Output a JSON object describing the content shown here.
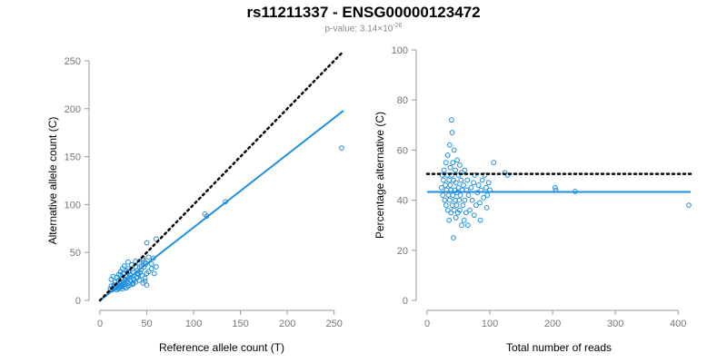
{
  "header": {
    "title": "rs11211337 - ENSG00000123472",
    "pvalue_prefix": "p-value: 3.14×10",
    "pvalue_exponent": "-26"
  },
  "colors": {
    "points": "#1f8fe0",
    "fit_line": "#1f8fe0",
    "reference_line": "#000000"
  },
  "chart_data": [
    {
      "type": "scatter",
      "xlabel": "Reference allele count (T)",
      "ylabel": "Alternative allele count (C)",
      "xlim": [
        0,
        260
      ],
      "ylim": [
        0,
        250
      ],
      "xticks": [
        0,
        50,
        100,
        150,
        200,
        250
      ],
      "yticks": [
        0,
        50,
        100,
        150,
        200,
        250
      ],
      "reference_line": {
        "style": "dotted",
        "x": [
          0,
          260
        ],
        "y": [
          0,
          260
        ]
      },
      "fit_line": {
        "style": "solid",
        "x": [
          0,
          260
        ],
        "y": [
          0,
          198
        ]
      },
      "points": [
        [
          11,
          12
        ],
        [
          12,
          15
        ],
        [
          13,
          11
        ],
        [
          14,
          13
        ],
        [
          15,
          16
        ],
        [
          15,
          12
        ],
        [
          16,
          14
        ],
        [
          17,
          13
        ],
        [
          18,
          15
        ],
        [
          18,
          11
        ],
        [
          19,
          14
        ],
        [
          20,
          16
        ],
        [
          20,
          12
        ],
        [
          21,
          13
        ],
        [
          22,
          15
        ],
        [
          22,
          18
        ],
        [
          23,
          14
        ],
        [
          24,
          12
        ],
        [
          25,
          16
        ],
        [
          25,
          19
        ],
        [
          26,
          14
        ],
        [
          27,
          17
        ],
        [
          28,
          13
        ],
        [
          28,
          21
        ],
        [
          30,
          15
        ],
        [
          31,
          18
        ],
        [
          32,
          16
        ],
        [
          33,
          20
        ],
        [
          35,
          17
        ],
        [
          36,
          22
        ],
        [
          38,
          19
        ],
        [
          40,
          24
        ],
        [
          42,
          21
        ],
        [
          45,
          26
        ],
        [
          48,
          23
        ],
        [
          50,
          28
        ],
        [
          52,
          30
        ],
        [
          55,
          33
        ],
        [
          58,
          28
        ],
        [
          60,
          35
        ],
        [
          12,
          22
        ],
        [
          14,
          25
        ],
        [
          16,
          19
        ],
        [
          18,
          24
        ],
        [
          20,
          21
        ],
        [
          22,
          26
        ],
        [
          24,
          23
        ],
        [
          26,
          28
        ],
        [
          28,
          25
        ],
        [
          30,
          30
        ],
        [
          32,
          27
        ],
        [
          34,
          33
        ],
        [
          36,
          29
        ],
        [
          38,
          35
        ],
        [
          40,
          31
        ],
        [
          42,
          38
        ],
        [
          44,
          36
        ],
        [
          46,
          42
        ],
        [
          48,
          40
        ],
        [
          52,
          45
        ],
        [
          30,
          33
        ],
        [
          34,
          37
        ],
        [
          38,
          41
        ],
        [
          40,
          28
        ],
        [
          44,
          32
        ],
        [
          46,
          18
        ],
        [
          48,
          20
        ],
        [
          50,
          16
        ],
        [
          35,
          18
        ],
        [
          37,
          21
        ],
        [
          25,
          28
        ],
        [
          27,
          22
        ],
        [
          29,
          19
        ],
        [
          31,
          24
        ],
        [
          33,
          26
        ],
        [
          39,
          24
        ],
        [
          41,
          27
        ],
        [
          43,
          29
        ],
        [
          47,
          35
        ],
        [
          49,
          38
        ],
        [
          20,
          27
        ],
        [
          22,
          30
        ],
        [
          24,
          33
        ],
        [
          26,
          36
        ],
        [
          28,
          31
        ],
        [
          30,
          40
        ],
        [
          46,
          44
        ],
        [
          50,
          60
        ],
        [
          55,
          38
        ],
        [
          57,
          44
        ],
        [
          60,
          64
        ],
        [
          112,
          90
        ],
        [
          114,
          88
        ],
        [
          134,
          103
        ],
        [
          258,
          159
        ]
      ]
    },
    {
      "type": "scatter",
      "xlabel": "Total number of reads",
      "ylabel": "Percentage alternative (C)",
      "xlim": [
        0,
        420
      ],
      "ylim": [
        0,
        100
      ],
      "xticks": [
        0,
        100,
        200,
        300,
        400
      ],
      "yticks": [
        0,
        20,
        40,
        60,
        80,
        100
      ],
      "reference_line": {
        "style": "dotted",
        "x": [
          0,
          420
        ],
        "y": [
          50.5,
          50.5
        ]
      },
      "fit_line": {
        "style": "solid",
        "x": [
          0,
          420
        ],
        "y": [
          43.3,
          43.3
        ]
      },
      "points": [
        [
          23,
          45
        ],
        [
          24,
          50
        ],
        [
          25,
          42
        ],
        [
          26,
          48
        ],
        [
          27,
          52
        ],
        [
          28,
          40
        ],
        [
          29,
          46
        ],
        [
          30,
          38
        ],
        [
          30,
          55
        ],
        [
          31,
          44
        ],
        [
          32,
          50
        ],
        [
          33,
          36
        ],
        [
          33,
          58
        ],
        [
          34,
          42
        ],
        [
          35,
          48
        ],
        [
          35,
          32
        ],
        [
          36,
          62
        ],
        [
          36,
          40
        ],
        [
          37,
          46
        ],
        [
          37,
          53
        ],
        [
          38,
          35
        ],
        [
          38,
          44
        ],
        [
          39,
          72
        ],
        [
          39,
          50
        ],
        [
          40,
          38
        ],
        [
          40,
          67
        ],
        [
          41,
          42
        ],
        [
          41,
          55
        ],
        [
          42,
          25
        ],
        [
          42,
          48
        ],
        [
          43,
          36
        ],
        [
          43,
          60
        ],
        [
          44,
          44
        ],
        [
          45,
          40
        ],
        [
          45,
          52
        ],
        [
          46,
          33
        ],
        [
          46,
          47
        ],
        [
          47,
          38
        ],
        [
          48,
          56
        ],
        [
          48,
          43
        ],
        [
          49,
          35
        ],
        [
          50,
          45
        ],
        [
          50,
          50
        ],
        [
          51,
          40
        ],
        [
          52,
          54
        ],
        [
          52,
          36
        ],
        [
          53,
          42
        ],
        [
          54,
          48
        ],
        [
          55,
          30
        ],
        [
          55,
          51
        ],
        [
          56,
          44
        ],
        [
          57,
          38
        ],
        [
          58,
          46
        ],
        [
          59,
          32
        ],
        [
          60,
          40
        ],
        [
          60,
          52
        ],
        [
          62,
          35
        ],
        [
          63,
          44
        ],
        [
          64,
          48
        ],
        [
          65,
          30
        ],
        [
          66,
          42
        ],
        [
          68,
          36
        ],
        [
          70,
          45
        ],
        [
          72,
          40
        ],
        [
          74,
          47
        ],
        [
          75,
          34
        ],
        [
          76,
          50
        ],
        [
          78,
          38
        ],
        [
          80,
          43
        ],
        [
          82,
          46
        ],
        [
          84,
          39
        ],
        [
          85,
          32
        ],
        [
          86,
          44
        ],
        [
          88,
          48
        ],
        [
          90,
          41
        ],
        [
          92,
          50
        ],
        [
          94,
          45
        ],
        [
          95,
          37
        ],
        [
          96,
          42
        ],
        [
          98,
          47
        ],
        [
          100,
          44
        ],
        [
          106,
          55
        ],
        [
          124,
          51
        ],
        [
          128,
          50
        ],
        [
          204,
          45
        ],
        [
          205,
          44
        ],
        [
          236,
          43.5
        ],
        [
          417,
          38
        ]
      ]
    }
  ]
}
